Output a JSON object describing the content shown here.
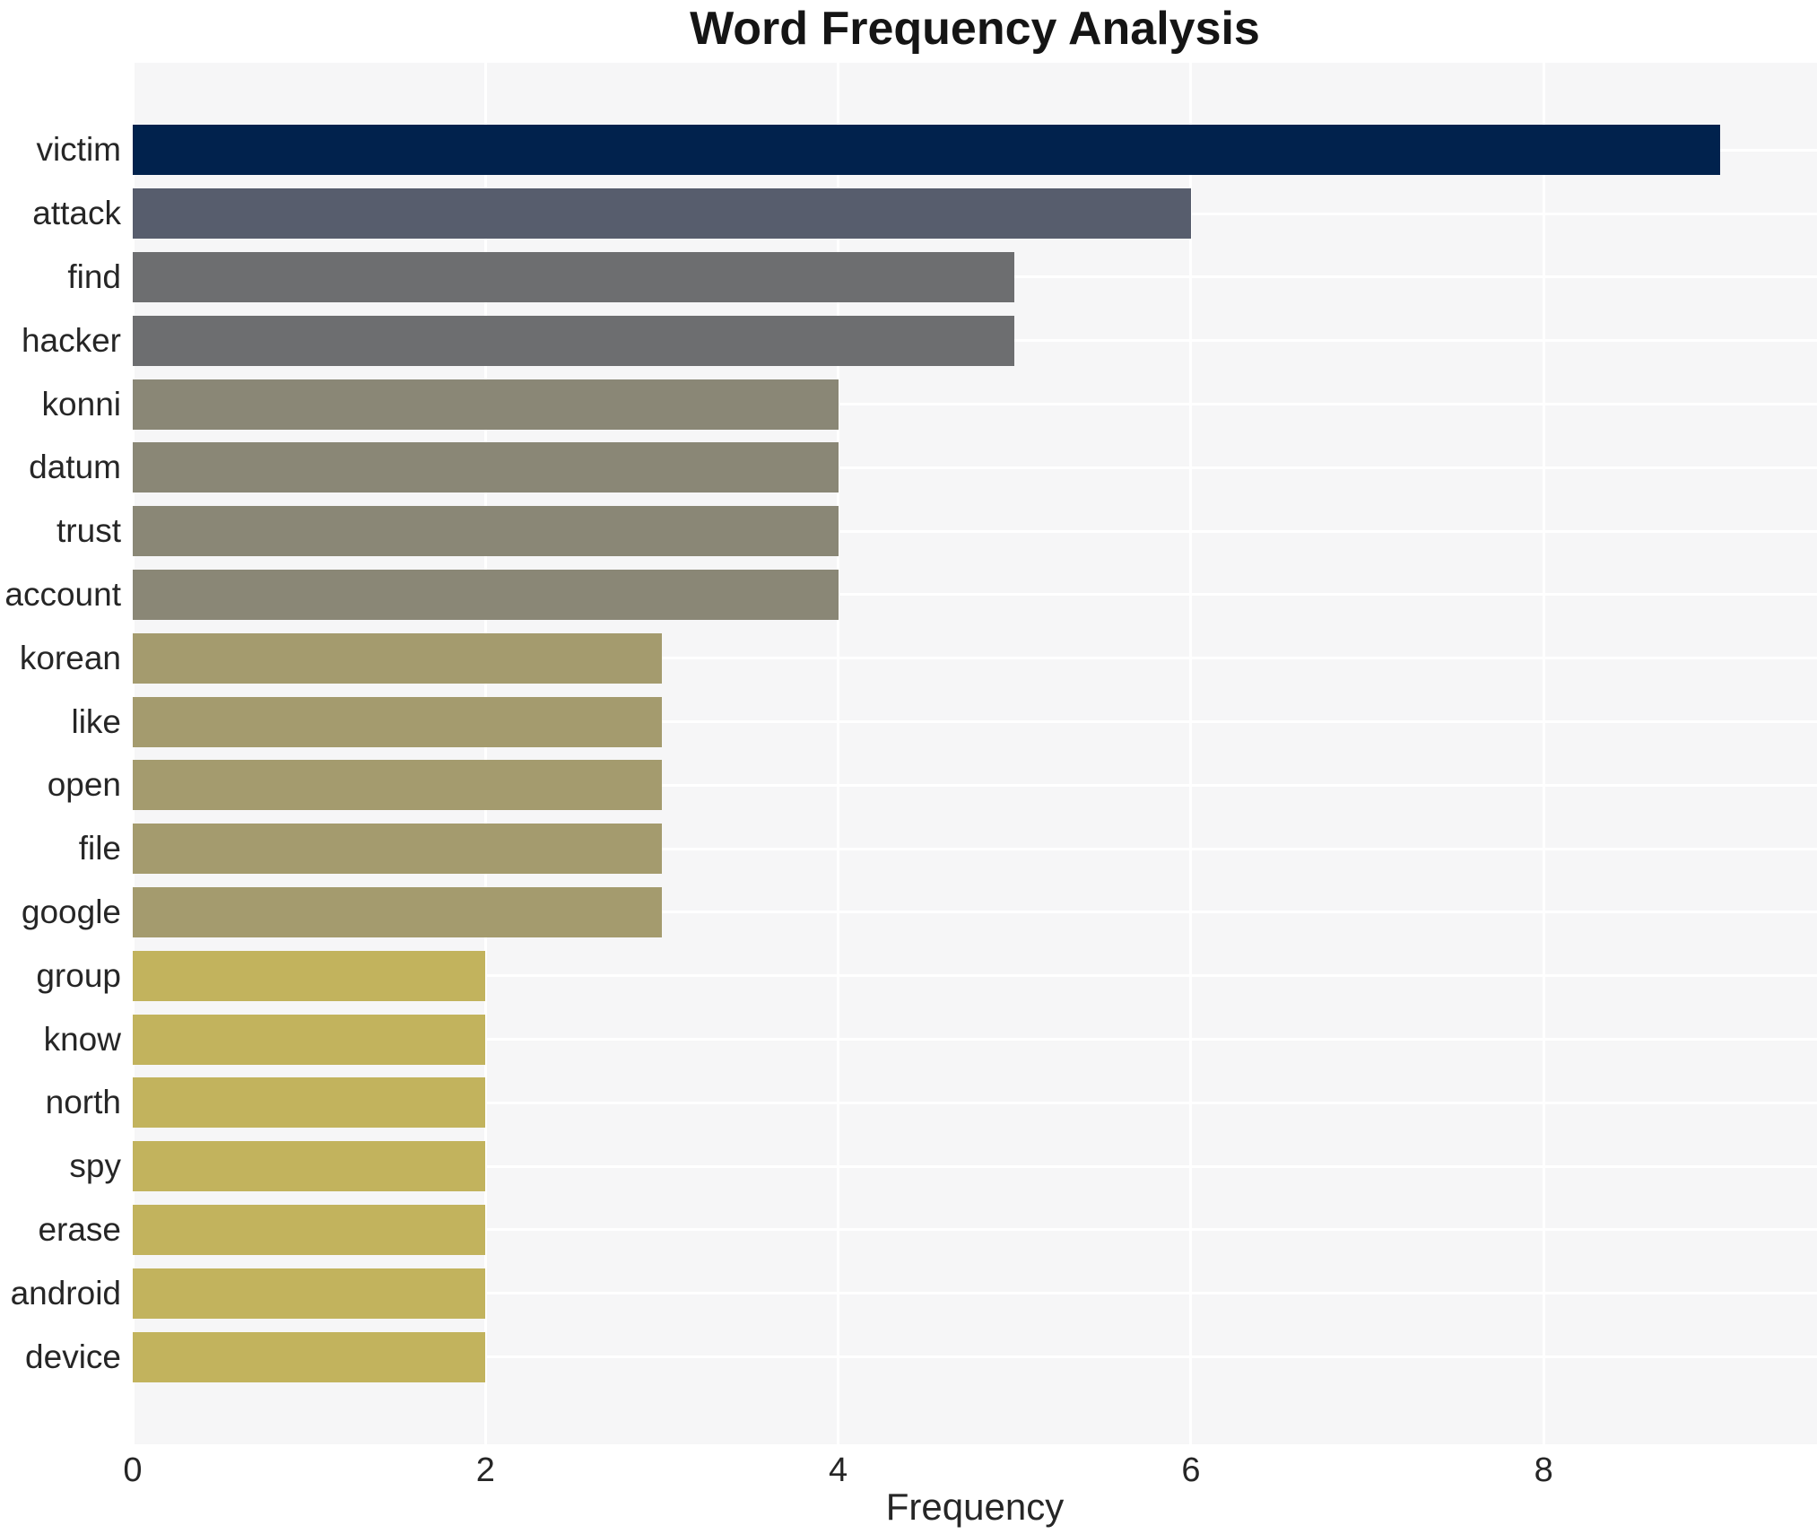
{
  "chart_data": {
    "type": "bar",
    "orientation": "horizontal",
    "title": "Word Frequency Analysis",
    "xlabel": "Frequency",
    "ylabel": "",
    "categories": [
      "victim",
      "attack",
      "find",
      "hacker",
      "konni",
      "datum",
      "trust",
      "account",
      "korean",
      "like",
      "open",
      "file",
      "google",
      "group",
      "know",
      "north",
      "spy",
      "erase",
      "android",
      "device"
    ],
    "values": [
      9,
      6,
      5,
      5,
      4,
      4,
      4,
      4,
      3,
      3,
      3,
      3,
      3,
      2,
      2,
      2,
      2,
      2,
      2,
      2
    ],
    "bar_colors": [
      "#01224d",
      "#575d6d",
      "#6d6e70",
      "#6d6e70",
      "#8a8776",
      "#8a8776",
      "#8a8776",
      "#8a8776",
      "#a49b6e",
      "#a49b6e",
      "#a49b6e",
      "#a49b6e",
      "#a49b6e",
      "#c2b35d",
      "#c2b35d",
      "#c2b35d",
      "#c2b35d",
      "#c2b35d",
      "#c2b35d",
      "#c2b35d"
    ],
    "xticks": [
      0,
      2,
      4,
      6,
      8
    ],
    "xlim": [
      0,
      9.55
    ],
    "grid": true,
    "grid_color": "#ffffff",
    "plot_background": "#f6f6f7",
    "legend": false
  }
}
